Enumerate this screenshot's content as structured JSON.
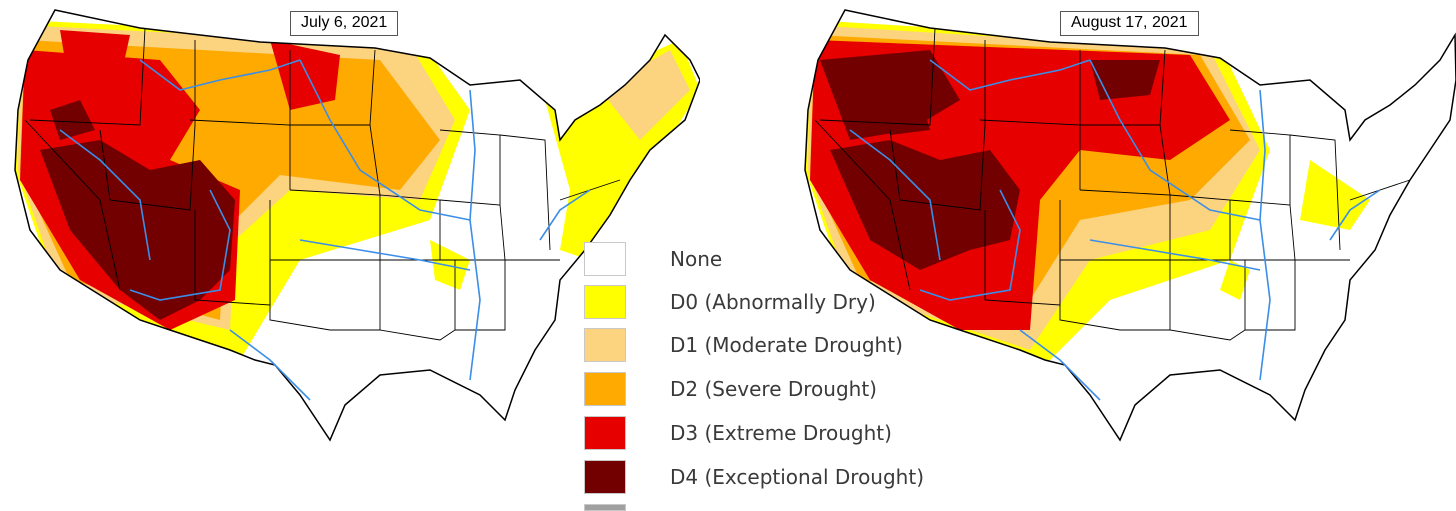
{
  "maps": [
    {
      "date": "July 6, 2021"
    },
    {
      "date": "August 17, 2021"
    }
  ],
  "legend": {
    "items": [
      {
        "label": "None",
        "color": "#ffffff"
      },
      {
        "label": "D0 (Abnormally Dry)",
        "color": "#ffff00"
      },
      {
        "label": "D1 (Moderate Drought)",
        "color": "#fcd37f"
      },
      {
        "label": "D2 (Severe Drought)",
        "color": "#ffaa00"
      },
      {
        "label": "D3 (Extreme Drought)",
        "color": "#e60000"
      },
      {
        "label": "D4 (Exceptional Drought)",
        "color": "#730000"
      }
    ],
    "cutoff_swatch_color": "#a0a0a0"
  },
  "colors": {
    "river": "#3b8ee8",
    "border": "#000000",
    "none": "#ffffff",
    "d0": "#ffff00",
    "d1": "#fcd37f",
    "d2": "#ffaa00",
    "d3": "#e60000",
    "d4": "#730000"
  }
}
